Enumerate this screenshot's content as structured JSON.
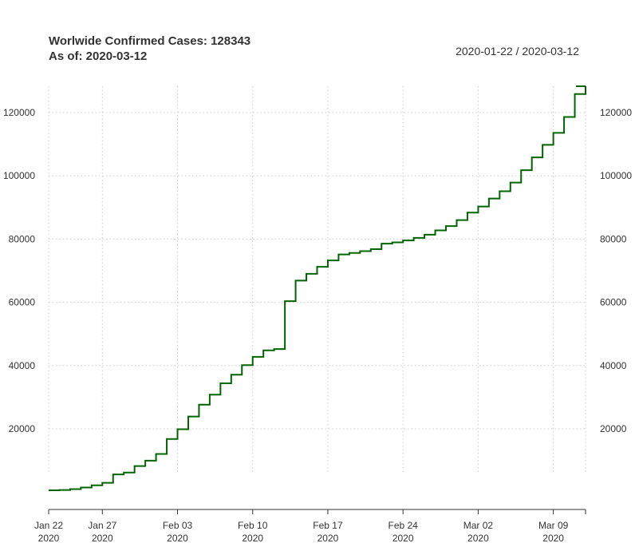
{
  "chart_data": {
    "type": "line",
    "step": true,
    "title": "Worlwide Confirmed Cases: 128343",
    "subtitle": "As of: 2020-03-12",
    "date_range_label": "2020-01-22 / 2020-03-12",
    "color": "#006400",
    "grid": true,
    "grid_color": "#cccccc",
    "x": [
      "2020-01-22",
      "2020-01-23",
      "2020-01-24",
      "2020-01-25",
      "2020-01-26",
      "2020-01-27",
      "2020-01-28",
      "2020-01-29",
      "2020-01-30",
      "2020-01-31",
      "2020-02-01",
      "2020-02-02",
      "2020-02-03",
      "2020-02-04",
      "2020-02-05",
      "2020-02-06",
      "2020-02-07",
      "2020-02-08",
      "2020-02-09",
      "2020-02-10",
      "2020-02-11",
      "2020-02-12",
      "2020-02-13",
      "2020-02-14",
      "2020-02-15",
      "2020-02-16",
      "2020-02-17",
      "2020-02-18",
      "2020-02-19",
      "2020-02-20",
      "2020-02-21",
      "2020-02-22",
      "2020-02-23",
      "2020-02-24",
      "2020-02-25",
      "2020-02-26",
      "2020-02-27",
      "2020-02-28",
      "2020-02-29",
      "2020-03-01",
      "2020-03-02",
      "2020-03-03",
      "2020-03-04",
      "2020-03-05",
      "2020-03-06",
      "2020-03-07",
      "2020-03-08",
      "2020-03-09",
      "2020-03-10",
      "2020-03-11",
      "2020-03-12"
    ],
    "series": [
      {
        "values": [
          555,
          654,
          941,
          1434,
          2118,
          2927,
          5578,
          6166,
          8234,
          9927,
          12038,
          16787,
          19881,
          23892,
          27635,
          30794,
          34391,
          37120,
          40150,
          42762,
          44802,
          45221,
          60368,
          66885,
          69030,
          71224,
          73258,
          75136,
          75639,
          76197,
          76819,
          78572,
          78958,
          79561,
          80406,
          81388,
          82746,
          84112,
          86011,
          88369,
          90306,
          92840,
          95120,
          97886,
          101801,
          105847,
          109821,
          113590,
          118620,
          125875,
          128343
        ]
      }
    ],
    "x_ticks": [
      {
        "date": "2020-01-22",
        "label": "Jan 22",
        "year": "2020"
      },
      {
        "date": "2020-01-27",
        "label": "Jan 27",
        "year": "2020"
      },
      {
        "date": "2020-02-03",
        "label": "Feb 03",
        "year": "2020"
      },
      {
        "date": "2020-02-10",
        "label": "Feb 10",
        "year": "2020"
      },
      {
        "date": "2020-02-17",
        "label": "Feb 17",
        "year": "2020"
      },
      {
        "date": "2020-02-24",
        "label": "Feb 24",
        "year": "2020"
      },
      {
        "date": "2020-03-02",
        "label": "Mar 02",
        "year": "2020"
      },
      {
        "date": "2020-03-09",
        "label": "Mar 09",
        "year": "2020"
      }
    ],
    "y_ticks": [
      20000,
      40000,
      60000,
      80000,
      100000,
      120000
    ],
    "ylim": [
      555,
      128343
    ]
  }
}
